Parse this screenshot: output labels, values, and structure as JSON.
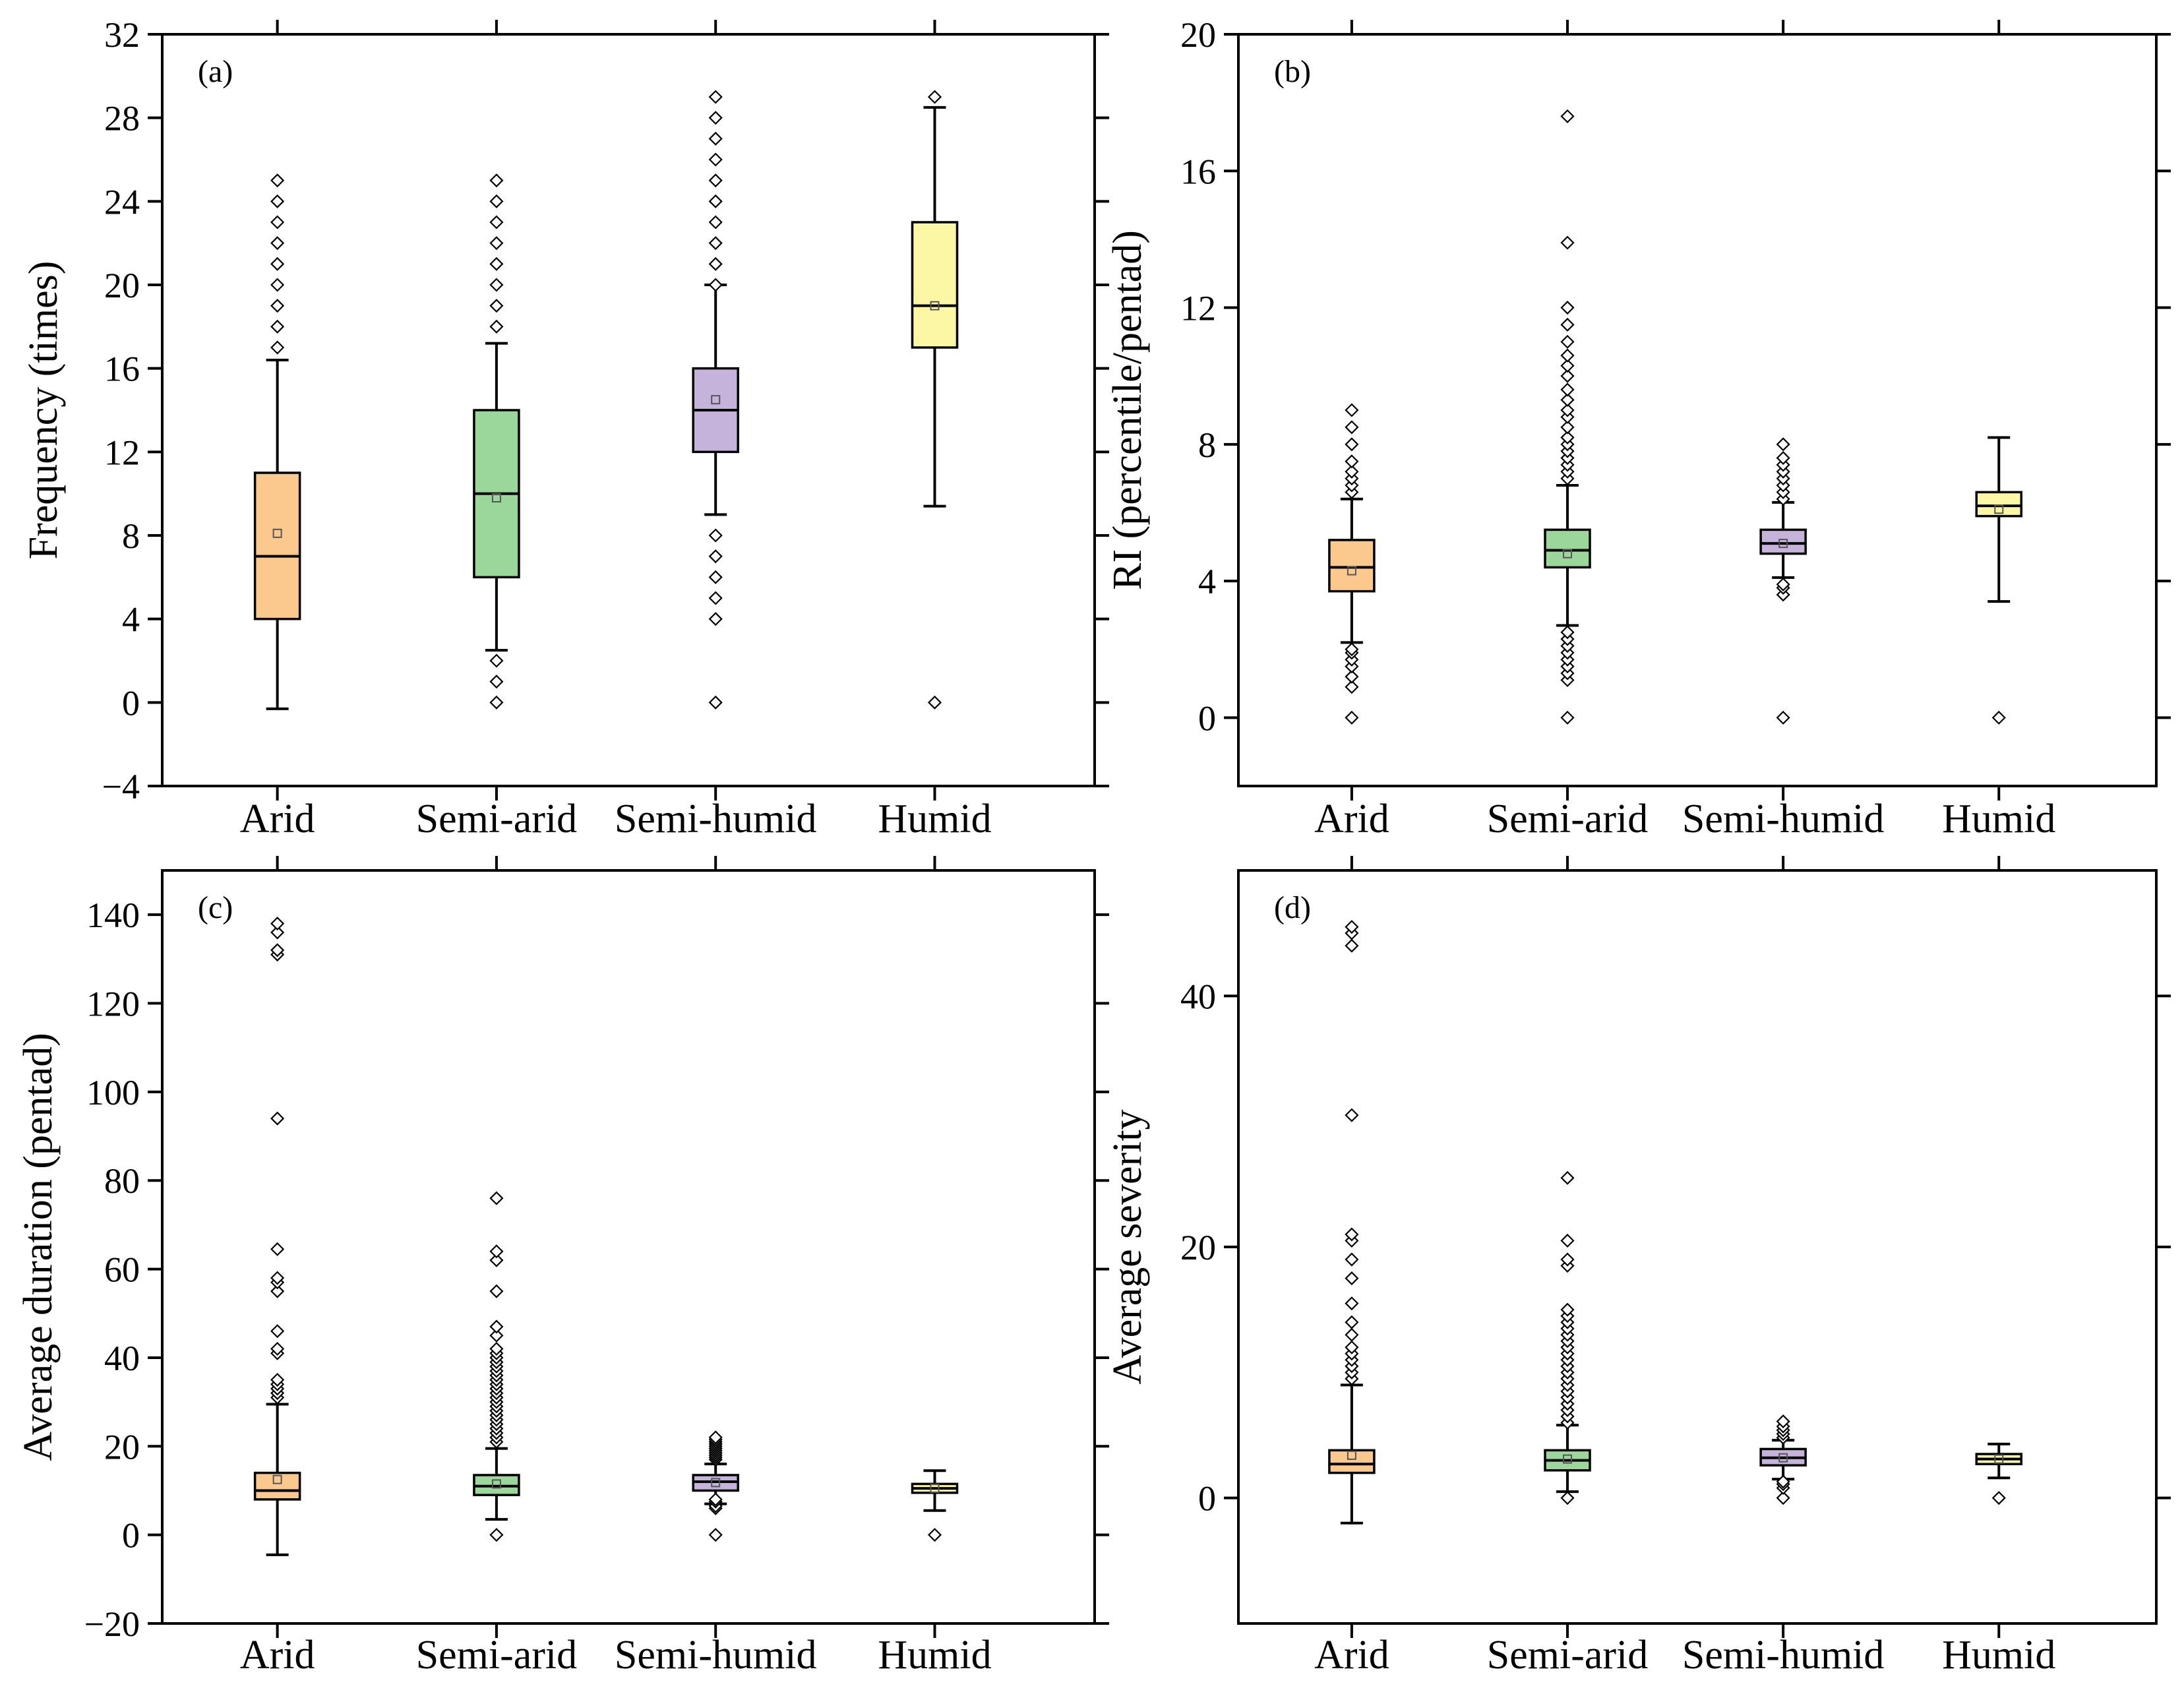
{
  "chart_data": [
    {
      "type": "box",
      "panel_label": "(a)",
      "ylabel": "Frequency (times)",
      "ylim": [
        -4,
        32
      ],
      "yticks": [
        -4,
        0,
        4,
        8,
        12,
        16,
        20,
        24,
        28,
        32
      ],
      "categories": [
        "Arid",
        "Semi-arid",
        "Semi-humid",
        "Humid"
      ],
      "boxes": [
        {
          "category": "Arid",
          "color": "#FBC88E",
          "whisker_low": -0.3,
          "q1": 4,
          "median": 7,
          "q3": 11,
          "whisker_high": 16.4,
          "mean": 8.1,
          "outliers": [
            17,
            18,
            19,
            20,
            21,
            22,
            23,
            24,
            25
          ]
        },
        {
          "category": "Semi-arid",
          "color": "#9BD79A",
          "whisker_low": 2.5,
          "q1": 6,
          "median": 10,
          "q3": 14,
          "whisker_high": 17.2,
          "mean": 9.8,
          "outliers": [
            0,
            1,
            2,
            18,
            19,
            20,
            21,
            22,
            23,
            24,
            25
          ]
        },
        {
          "category": "Semi-humid",
          "color": "#C5B3DB",
          "whisker_low": 9,
          "q1": 12,
          "median": 14,
          "q3": 16,
          "whisker_high": 20,
          "mean": 14.5,
          "outliers": [
            0,
            4,
            5,
            6,
            7,
            8,
            20,
            21,
            22,
            23,
            24,
            25,
            26,
            27,
            28,
            29
          ]
        },
        {
          "category": "Humid",
          "color": "#FBF7A5",
          "whisker_low": 9.4,
          "q1": 17,
          "median": 19,
          "q3": 23,
          "whisker_high": 28.5,
          "mean": 19,
          "outliers": [
            0,
            29
          ]
        }
      ]
    },
    {
      "type": "box",
      "panel_label": "(b)",
      "ylabel": "RI (percentile/pentad)",
      "ylim": [
        -2,
        20
      ],
      "yticks": [
        0,
        4,
        8,
        12,
        16,
        20
      ],
      "categories": [
        "Arid",
        "Semi-arid",
        "Semi-humid",
        "Humid"
      ],
      "boxes": [
        {
          "category": "Arid",
          "color": "#FBC88E",
          "whisker_low": 2.2,
          "q1": 3.7,
          "median": 4.4,
          "q3": 5.2,
          "whisker_high": 6.4,
          "mean": 4.3,
          "outliers": [
            0,
            0.9,
            1.2,
            1.5,
            1.7,
            1.9,
            2.0,
            6.6,
            6.8,
            7.0,
            7.2,
            7.5,
            8.0,
            8.5,
            9.0
          ]
        },
        {
          "category": "Semi-arid",
          "color": "#9BD79A",
          "whisker_low": 2.7,
          "q1": 4.4,
          "median": 4.9,
          "q3": 5.5,
          "whisker_high": 6.8,
          "mean": 4.8,
          "outliers": [
            0,
            1.1,
            1.3,
            1.5,
            1.7,
            1.9,
            2.1,
            2.3,
            2.5,
            7.0,
            7.2,
            7.4,
            7.6,
            7.8,
            8.0,
            8.2,
            8.5,
            8.8,
            9.0,
            9.3,
            9.6,
            10.0,
            10.3,
            10.6,
            11.0,
            11.5,
            12.0,
            13.9,
            17.6
          ]
        },
        {
          "category": "Semi-humid",
          "color": "#C5B3DB",
          "whisker_low": 4.1,
          "q1": 4.8,
          "median": 5.1,
          "q3": 5.5,
          "whisker_high": 6.3,
          "mean": 5.1,
          "outliers": [
            0,
            3.6,
            3.8,
            3.9,
            6.4,
            6.6,
            6.8,
            7.0,
            7.2,
            7.4,
            7.6,
            8.0
          ]
        },
        {
          "category": "Humid",
          "color": "#FBF7A5",
          "whisker_low": 3.4,
          "q1": 5.9,
          "median": 6.2,
          "q3": 6.6,
          "whisker_high": 8.2,
          "mean": 6.1,
          "outliers": [
            0
          ]
        }
      ]
    },
    {
      "type": "box",
      "panel_label": "(c)",
      "ylabel": "Average duration (pentad)",
      "ylim": [
        -20,
        150
      ],
      "yticks": [
        -20,
        0,
        20,
        40,
        60,
        80,
        100,
        120,
        140
      ],
      "categories": [
        "Arid",
        "Semi-arid",
        "Semi-humid",
        "Humid"
      ],
      "boxes": [
        {
          "category": "Arid",
          "color": "#FBC88E",
          "whisker_low": -4.5,
          "q1": 8,
          "median": 10,
          "q3": 14,
          "whisker_high": 29.5,
          "mean": 12.5,
          "outliers": [
            31,
            32,
            33,
            34,
            35,
            41,
            42,
            46,
            55,
            57,
            58,
            64.5,
            94,
            131,
            132,
            136,
            138
          ]
        },
        {
          "category": "Semi-arid",
          "color": "#9BD79A",
          "whisker_low": 3.5,
          "q1": 9,
          "median": 11,
          "q3": 13.5,
          "whisker_high": 19.5,
          "mean": 11.5,
          "outliers": [
            0,
            21,
            22,
            23,
            24,
            25,
            26,
            27,
            28,
            29,
            30,
            31,
            32,
            33,
            34,
            35,
            36,
            37,
            38,
            39,
            40,
            41,
            42,
            45,
            47,
            55,
            62,
            64,
            76
          ]
        },
        {
          "category": "Semi-humid",
          "color": "#C5B3DB",
          "whisker_low": 7,
          "q1": 10,
          "median": 12,
          "q3": 13.5,
          "whisker_high": 16,
          "mean": 11.8,
          "outliers": [
            0,
            6,
            6.5,
            7.5,
            8,
            17,
            17.5,
            18,
            18.5,
            19,
            19.5,
            20,
            20.5,
            21,
            21.5,
            22
          ]
        },
        {
          "category": "Humid",
          "color": "#FBF7A5",
          "whisker_low": 5.5,
          "q1": 9.5,
          "median": 10.5,
          "q3": 11.5,
          "whisker_high": 14.5,
          "mean": 10.5,
          "outliers": [
            0
          ]
        }
      ]
    },
    {
      "type": "box",
      "panel_label": "(d)",
      "ylabel": "Average severity",
      "ylim": [
        -10,
        50
      ],
      "yticks": [
        0,
        20,
        40
      ],
      "categories": [
        "Arid",
        "Semi-arid",
        "Semi-humid",
        "Humid"
      ],
      "boxes": [
        {
          "category": "Arid",
          "color": "#FBC88E",
          "whisker_low": -2,
          "q1": 2,
          "median": 2.7,
          "q3": 3.8,
          "whisker_high": 9,
          "mean": 3.4,
          "outliers": [
            9.5,
            10,
            10.5,
            11,
            11.5,
            12,
            13,
            14,
            15.5,
            17.5,
            19,
            20.5,
            21,
            30.5,
            44,
            45,
            45.5
          ]
        },
        {
          "category": "Semi-arid",
          "color": "#9BD79A",
          "whisker_low": 0.5,
          "q1": 2.2,
          "median": 3,
          "q3": 3.8,
          "whisker_high": 5.8,
          "mean": 3.1,
          "outliers": [
            0,
            6,
            6.5,
            7,
            7.5,
            8,
            8.5,
            9,
            9.5,
            10,
            10.5,
            11,
            11.5,
            12,
            12.5,
            13,
            13.5,
            14,
            14.5,
            15,
            18.5,
            19,
            20.5,
            25.5
          ]
        },
        {
          "category": "Semi-humid",
          "color": "#C5B3DB",
          "whisker_low": 1.5,
          "q1": 2.6,
          "median": 3.2,
          "q3": 3.9,
          "whisker_high": 4.6,
          "mean": 3.2,
          "outliers": [
            0,
            0.8,
            1.1,
            1.3,
            4.8,
            5.1,
            5.4,
            5.7,
            6.1
          ]
        },
        {
          "category": "Humid",
          "color": "#FBF7A5",
          "whisker_low": 1.6,
          "q1": 2.7,
          "median": 3.1,
          "q3": 3.5,
          "whisker_high": 4.3,
          "mean": 3.1,
          "outliers": [
            0
          ]
        }
      ]
    }
  ]
}
